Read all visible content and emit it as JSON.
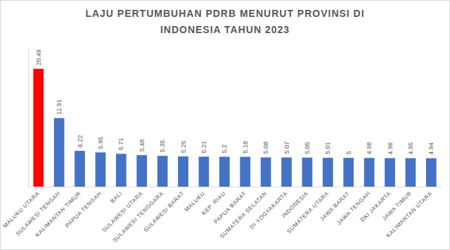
{
  "chart_data": {
    "type": "bar",
    "title": "LAJU PERTUMBUHAN PDRB MENURUT PROVINSI DI INDONESIA TAHUN 2023",
    "categories": [
      "MALUKU UTARA",
      "SULAWESI TENGAH",
      "KALIMANTAN TIMUR",
      "PAPUA TENGAH",
      "BALI",
      "SULAWESI UTARA",
      "SULAWESI TENGGARA",
      "SULAWESI BARAT",
      "MALUKU",
      "KEP. RIAU",
      "PAPUA BARAT",
      "SUMATERA SELATAN",
      "DI YOGYAKARTA",
      "INDONESIA",
      "SUMATERA UTARA",
      "JAWA BARAT",
      "JAWA TENGAH",
      "DKI JAKARTA",
      "JAWA TIMUR",
      "KALIMANTAN UTARA"
    ],
    "values": [
      20.49,
      11.91,
      6.22,
      5.95,
      5.71,
      5.48,
      5.35,
      5.25,
      5.21,
      5.2,
      5.18,
      5.08,
      5.07,
      5.05,
      5.01,
      5,
      4.98,
      4.96,
      4.95,
      4.94
    ],
    "colors": [
      "#ff0000",
      "#4472c4",
      "#4472c4",
      "#4472c4",
      "#4472c4",
      "#4472c4",
      "#4472c4",
      "#4472c4",
      "#4472c4",
      "#4472c4",
      "#4472c4",
      "#4472c4",
      "#4472c4",
      "#4472c4",
      "#4472c4",
      "#4472c4",
      "#4472c4",
      "#4472c4",
      "#4472c4",
      "#4472c4"
    ],
    "ylim": [
      0,
      24
    ],
    "grid": false,
    "data_labels": true,
    "tick_labels": "x"
  }
}
